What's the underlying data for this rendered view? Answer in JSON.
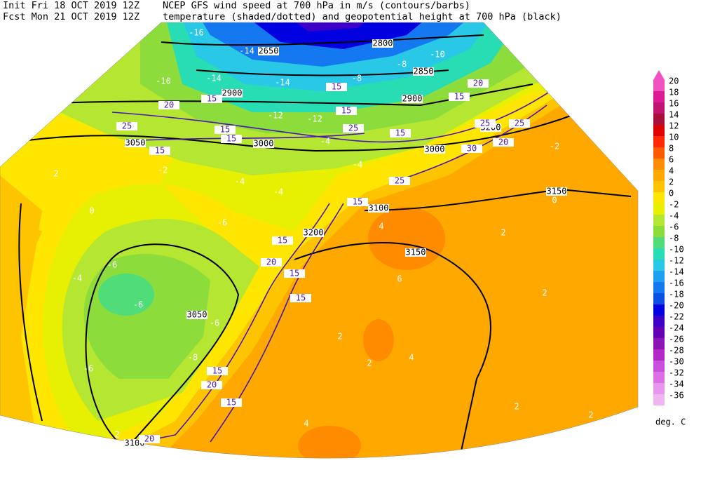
{
  "header": {
    "init": "Init  Fri 18 OCT 2019 12Z",
    "fcst": "Fcst Mon 21 OCT 2019 12Z",
    "title_line1": "NCEP GFS wind speed at 700 hPa in m/s (contours/barbs)",
    "title_line2": "temperature (shaded/dotted) and geopotential height at 700 hPa (black)"
  },
  "colorbar": {
    "levels": [
      20,
      18,
      16,
      14,
      12,
      10,
      8,
      6,
      4,
      2,
      0,
      -2,
      -4,
      -6,
      -8,
      -10,
      -12,
      -14,
      -16,
      -18,
      -20,
      -22,
      -24,
      -26,
      -28,
      -30,
      -32,
      -34,
      -36
    ],
    "colors": [
      "#f050c0",
      "#dc1a96",
      "#c0146e",
      "#a8103c",
      "#e00000",
      "#ff2800",
      "#ff5a00",
      "#ff8c00",
      "#ffa800",
      "#ffc400",
      "#ffe600",
      "#e6f000",
      "#b4e632",
      "#8cdc3c",
      "#50dc78",
      "#28dcb4",
      "#28c8e6",
      "#1ea0f0",
      "#1478f0",
      "#0a50e6",
      "#0000e0",
      "#3c00c8",
      "#6400b4",
      "#8c14b4",
      "#b428c8",
      "#c850dc",
      "#dc6ee6",
      "#e896f0",
      "#f0b4f0"
    ],
    "unit": "deg. C"
  },
  "labels": {
    "height": [
      2650,
      2800,
      2850,
      2900,
      2900,
      3000,
      3050,
      3000,
      3100,
      3150,
      3150,
      3050,
      3100,
      3200,
      3200
    ],
    "wind": [
      15,
      20,
      25,
      15,
      15,
      15,
      15,
      25,
      15,
      15,
      20,
      25,
      20,
      15,
      30,
      25,
      25,
      15,
      15,
      20,
      15,
      15,
      15,
      20,
      15,
      20
    ],
    "temperature": [
      -16,
      -14,
      -14,
      -14,
      -10,
      -10,
      -8,
      -8,
      -4,
      -12,
      -12,
      -2,
      2,
      0,
      -2,
      -4,
      -4,
      -4,
      -6,
      -6,
      -4,
      -6,
      -6,
      -6,
      -8,
      0,
      2,
      2,
      2,
      2,
      4,
      6,
      4,
      4,
      2,
      2,
      2
    ]
  }
}
